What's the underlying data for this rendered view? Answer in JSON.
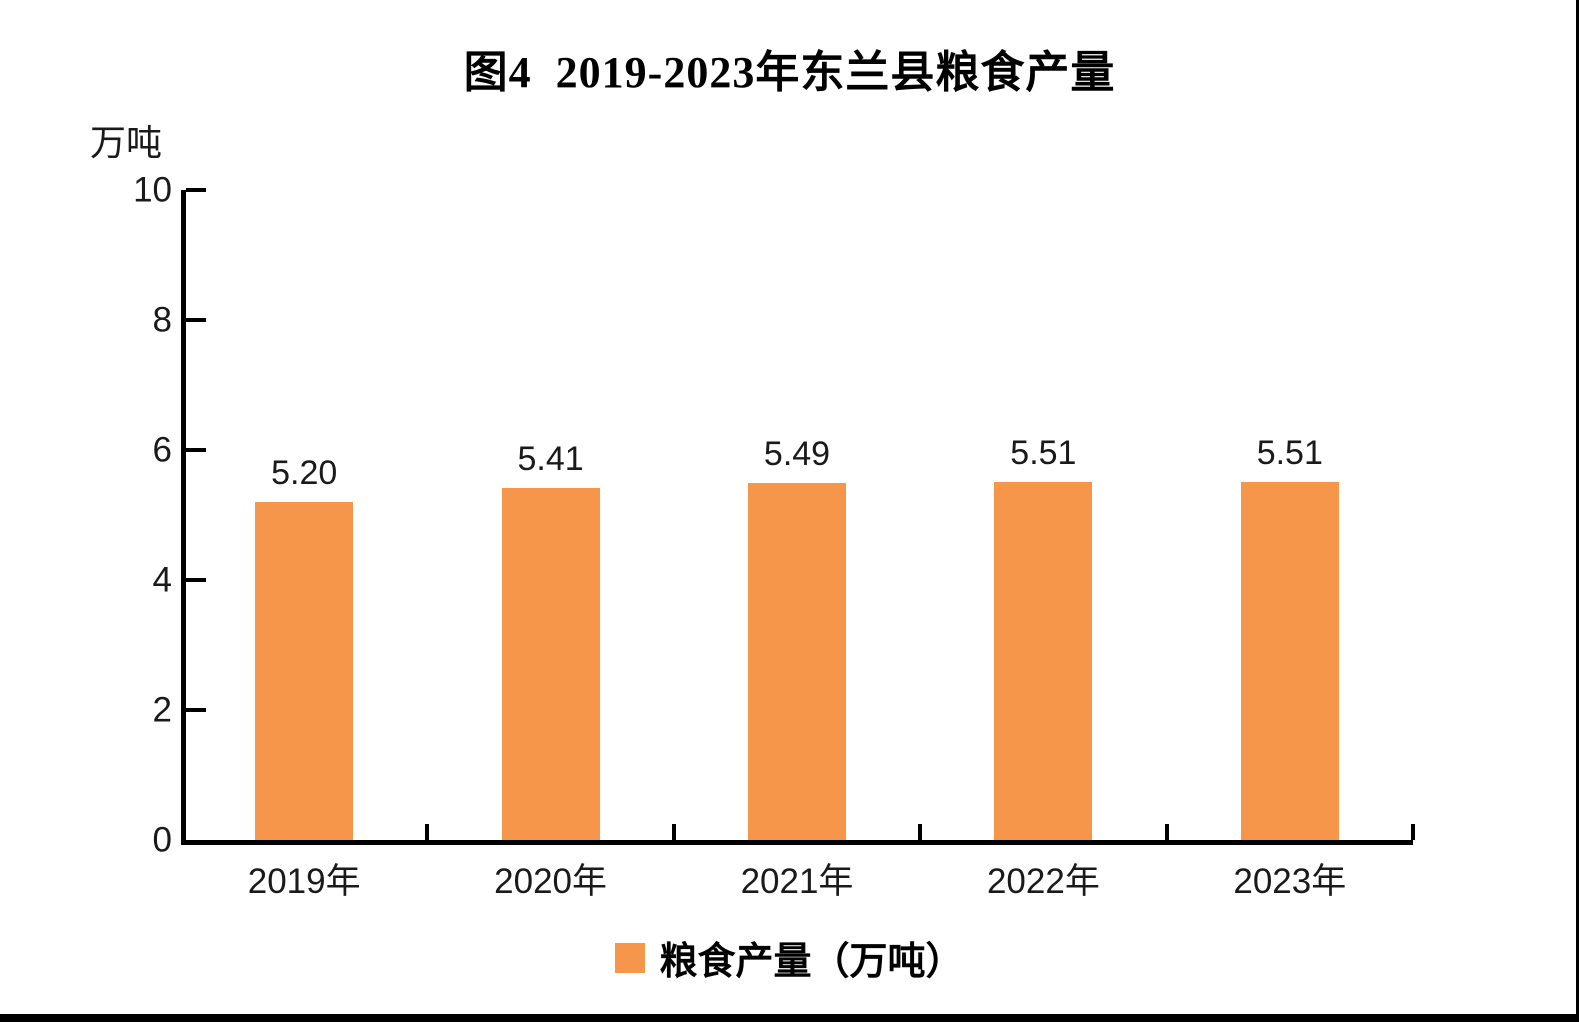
{
  "page": {
    "background": "#ffffff",
    "right_edge_color": "#000000",
    "bottom_bar_color": "#000000"
  },
  "chart_data": {
    "type": "bar",
    "title": "图4  2019-2023年东兰县粮食产量",
    "unit_label": "万吨",
    "categories": [
      "2019年",
      "2020年",
      "2021年",
      "2022年",
      "2023年"
    ],
    "values": [
      5.2,
      5.41,
      5.49,
      5.51,
      5.51
    ],
    "data_labels": [
      "5.20",
      "5.41",
      "5.49",
      "5.51",
      "5.51"
    ],
    "xlabel": "",
    "ylabel": "万吨",
    "ylim": [
      0,
      10
    ],
    "y_ticks": [
      0,
      2,
      4,
      6,
      8,
      10
    ],
    "grid": false,
    "bar_color": "#F6964B",
    "axis_color": "#000000",
    "text_color": "#1a1a1a",
    "legend": {
      "position": "bottom",
      "entries": [
        {
          "label": "粮食产量（万吨）",
          "swatch_color": "#F6964B"
        }
      ]
    }
  }
}
